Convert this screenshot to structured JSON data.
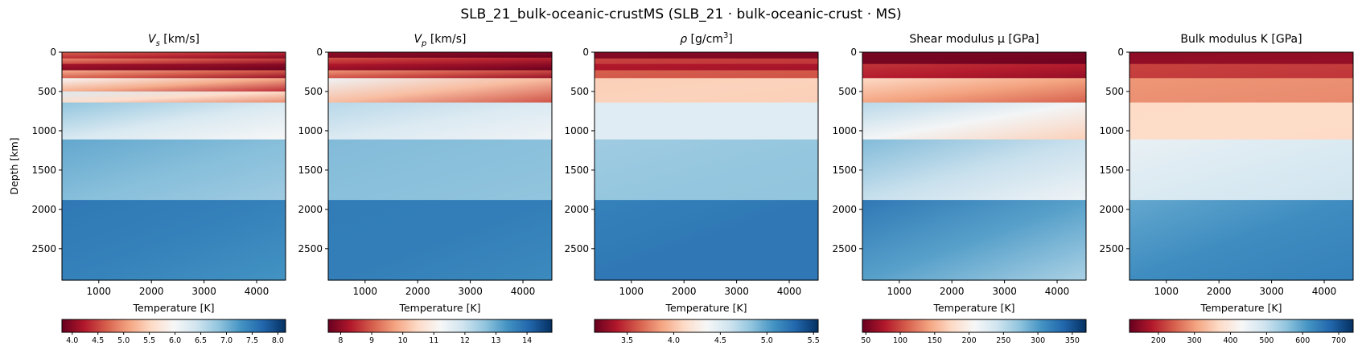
{
  "figure": {
    "title": "SLB_21_bulk-oceanic-crustMS   (SLB_21 · bulk-oceanic-crust · MS)"
  },
  "colormap": {
    "name": "RdBu",
    "stops": [
      "#67001f",
      "#b2182b",
      "#d6604d",
      "#f4a582",
      "#fddbc7",
      "#f7f7f7",
      "#d1e5f0",
      "#92c5de",
      "#4393c3",
      "#2166ac",
      "#053061"
    ]
  },
  "chart_data": [
    {
      "type": "heatmap",
      "title_main": "V",
      "title_sub": "s",
      "title_rest": " [km/s]",
      "xlabel": "Temperature [K]",
      "ylabel": "Depth [km]",
      "xlim": [
        300,
        4550
      ],
      "ylim": [
        0,
        2900
      ],
      "x_ticks": [
        1000,
        2000,
        3000,
        4000
      ],
      "y_ticks": [
        0,
        500,
        1000,
        1500,
        2000,
        2500
      ],
      "colorbar": {
        "min": 3.8,
        "max": 8.15,
        "ticks": [
          4.0,
          4.5,
          5.0,
          5.5,
          6.0,
          6.5,
          7.0,
          7.5,
          8.0
        ],
        "tick_labels": [
          "4.0",
          "4.5",
          "5.0",
          "5.5",
          "6.0",
          "6.5",
          "7.0",
          "7.5",
          "8.0"
        ]
      }
    },
    {
      "type": "heatmap",
      "title_main": "V",
      "title_sub": "p",
      "title_rest": " [km/s]",
      "xlabel": "Temperature [K]",
      "ylabel": "",
      "xlim": [
        300,
        4550
      ],
      "ylim": [
        0,
        2900
      ],
      "x_ticks": [
        1000,
        2000,
        3000,
        4000
      ],
      "y_ticks": [
        0,
        500,
        1000,
        1500,
        2000,
        2500
      ],
      "colorbar": {
        "min": 7.6,
        "max": 14.8,
        "ticks": [
          8,
          9,
          10,
          11,
          12,
          13,
          14
        ],
        "tick_labels": [
          "8",
          "9",
          "10",
          "11",
          "12",
          "13",
          "14"
        ]
      }
    },
    {
      "type": "heatmap",
      "title_main": "ρ",
      "title_sup": "3",
      "title_rest": " [g/cm",
      "title_end": "]",
      "xlabel": "Temperature [K]",
      "ylabel": "",
      "xlim": [
        300,
        4550
      ],
      "ylim": [
        0,
        2900
      ],
      "x_ticks": [
        1000,
        2000,
        3000,
        4000
      ],
      "y_ticks": [
        0,
        500,
        1000,
        1500,
        2000,
        2500
      ],
      "colorbar": {
        "min": 3.15,
        "max": 5.55,
        "ticks": [
          3.5,
          4.0,
          4.5,
          5.0,
          5.5
        ],
        "tick_labels": [
          "3.5",
          "4.0",
          "4.5",
          "5.0",
          "5.5"
        ]
      }
    },
    {
      "type": "heatmap",
      "title_main": "Shear modulus μ [GPa]",
      "xlabel": "Temperature [K]",
      "ylabel": "",
      "xlim": [
        300,
        4550
      ],
      "ylim": [
        0,
        2900
      ],
      "x_ticks": [
        1000,
        2000,
        3000,
        4000
      ],
      "y_ticks": [
        0,
        500,
        1000,
        1500,
        2000,
        2500
      ],
      "colorbar": {
        "min": 45,
        "max": 370,
        "ticks": [
          50,
          100,
          150,
          200,
          250,
          300,
          350
        ],
        "tick_labels": [
          "50",
          "100",
          "150",
          "200",
          "250",
          "300",
          "350"
        ]
      }
    },
    {
      "type": "heatmap",
      "title_main": "Bulk modulus K [GPa]",
      "xlabel": "Temperature [K]",
      "ylabel": "",
      "xlim": [
        300,
        4550
      ],
      "ylim": [
        0,
        2900
      ],
      "x_ticks": [
        1000,
        2000,
        3000,
        4000
      ],
      "y_ticks": [
        0,
        500,
        1000,
        1500,
        2000,
        2500
      ],
      "colorbar": {
        "min": 120,
        "max": 740,
        "ticks": [
          200,
          300,
          400,
          500,
          600,
          700
        ],
        "tick_labels": [
          "200",
          "300",
          "400",
          "500",
          "600",
          "700"
        ]
      }
    }
  ]
}
